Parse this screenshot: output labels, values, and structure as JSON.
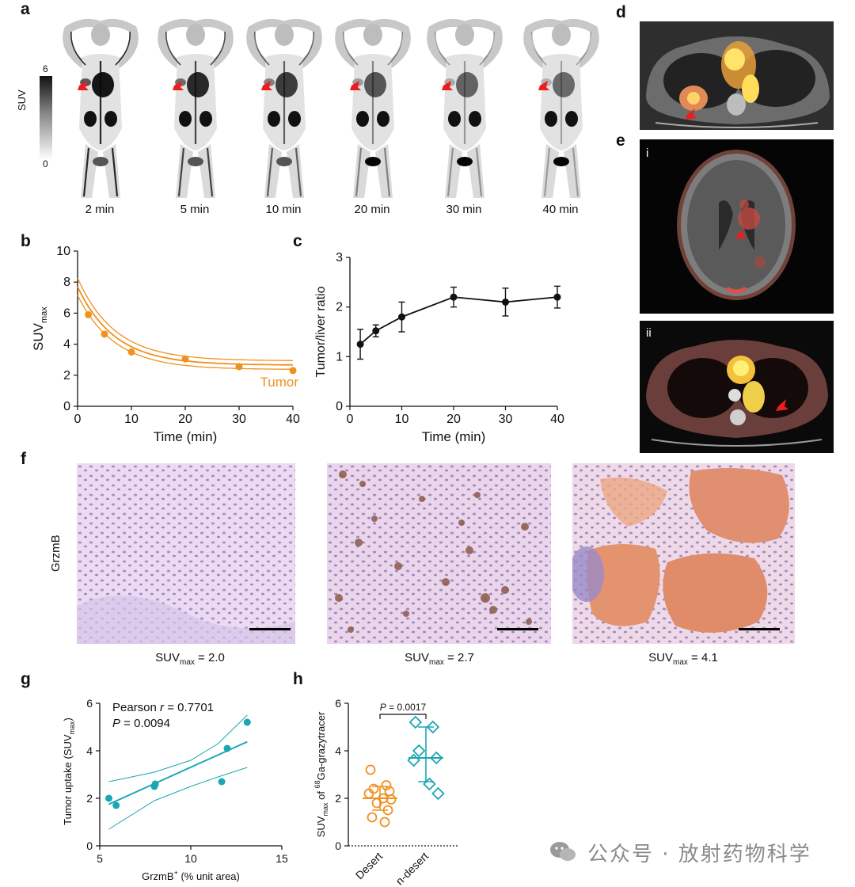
{
  "panels": {
    "a": "a",
    "b": "b",
    "c": "c",
    "d": "d",
    "e": "e",
    "f": "f",
    "g": "g",
    "h": "h"
  },
  "panel_a": {
    "colorbar": {
      "label": "SUV",
      "max": "6",
      "min": "0"
    },
    "timepoints": [
      "2 min",
      "5 min",
      "10 min",
      "20 min",
      "30 min",
      "40 min"
    ],
    "tracer_intensity": [
      1.0,
      0.85,
      0.7,
      0.5,
      0.4,
      0.35
    ]
  },
  "panel_e": {
    "sub_i": "i",
    "sub_ii": "ii"
  },
  "panel_f": {
    "row_label": "GrzmB",
    "captions": [
      {
        "pre": "SUV",
        "sub": "max",
        "post": " = 2.0"
      },
      {
        "pre": "SUV",
        "sub": "max",
        "post": " = 2.7"
      },
      {
        "pre": "SUV",
        "sub": "max",
        "post": " = 4.1"
      }
    ]
  },
  "chart_data": [
    {
      "panel": "b",
      "type": "line",
      "xlabel": "Time (min)",
      "ylabel": "SUV",
      "ylabel_sub": "max",
      "xlim": [
        0,
        40
      ],
      "ylim": [
        0,
        10
      ],
      "xticks": [
        0,
        10,
        20,
        30,
        40
      ],
      "yticks": [
        0,
        2,
        4,
        6,
        8,
        10
      ],
      "series": [
        {
          "name": "Tumor",
          "color": "#f0901e",
          "points": [
            {
              "x": 2,
              "y": 5.9
            },
            {
              "x": 5,
              "y": 4.65
            },
            {
              "x": 10,
              "y": 3.5
            },
            {
              "x": 20,
              "y": 3.05
            },
            {
              "x": 30,
              "y": 2.55
            },
            {
              "x": 40,
              "y": 2.3
            }
          ],
          "fit": {
            "y0": 7.7,
            "plateau": 2.65,
            "k": 0.145,
            "band": 0.28
          }
        }
      ]
    },
    {
      "panel": "c",
      "type": "line",
      "xlabel": "Time (min)",
      "ylabel": "Tumor/liver ratio",
      "xlim": [
        0,
        40
      ],
      "ylim": [
        0,
        3
      ],
      "xticks": [
        0,
        10,
        20,
        30,
        40
      ],
      "yticks": [
        0,
        1,
        2,
        3
      ],
      "series": [
        {
          "color": "#111111",
          "points": [
            {
              "x": 2,
              "y": 1.25,
              "err": 0.3
            },
            {
              "x": 5,
              "y": 1.52,
              "err": 0.12
            },
            {
              "x": 10,
              "y": 1.8,
              "err": 0.3
            },
            {
              "x": 20,
              "y": 2.2,
              "err": 0.2
            },
            {
              "x": 30,
              "y": 2.1,
              "err": 0.28
            },
            {
              "x": 40,
              "y": 2.2,
              "err": 0.22
            }
          ]
        }
      ]
    },
    {
      "panel": "g",
      "type": "scatter",
      "xlabel": "GrzmB",
      "xlabel_sup": "+",
      "xlabel_post": " (% unit area)",
      "ylabel": "Tumor uptake (SUV",
      "ylabel_sub": "max",
      "ylabel_post": ")",
      "xlim": [
        5,
        15
      ],
      "ylim": [
        0,
        6
      ],
      "xticks": [
        5,
        10,
        15
      ],
      "yticks": [
        0,
        2,
        4,
        6
      ],
      "stats": {
        "r_pre": "Pearson ",
        "r_it": "r",
        "r_post": " = 0.7701",
        "p_it": "P",
        "p_post": " = 0.0094"
      },
      "points": [
        {
          "x": 5.5,
          "y": 2.0
        },
        {
          "x": 5.9,
          "y": 1.7
        },
        {
          "x": 8.0,
          "y": 2.5
        },
        {
          "x": 8.05,
          "y": 2.6
        },
        {
          "x": 11.7,
          "y": 2.7
        },
        {
          "x": 12.0,
          "y": 4.1
        },
        {
          "x": 13.1,
          "y": 5.2
        }
      ],
      "fit": {
        "x0": 5.5,
        "y0": 1.75,
        "x1": 13.1,
        "y1": 4.38
      },
      "ci": {
        "upper": [
          [
            5.5,
            2.7
          ],
          [
            8,
            3.1
          ],
          [
            10,
            3.6
          ],
          [
            11.5,
            4.3
          ],
          [
            13.1,
            5.5
          ]
        ],
        "lower": [
          [
            5.5,
            0.7
          ],
          [
            8,
            1.9
          ],
          [
            10,
            2.5
          ],
          [
            11.5,
            2.9
          ],
          [
            13.1,
            3.3
          ]
        ]
      },
      "color": "#1aa6b3"
    },
    {
      "panel": "h",
      "type": "scatter",
      "ylabel": "SUV",
      "ylabel_sub": "max",
      "ylabel_post": " of ",
      "ylabel_sup": "68",
      "ylabel_end": "Ga-grazytracer",
      "ylim": [
        0,
        6
      ],
      "yticks": [
        0,
        2,
        4,
        6
      ],
      "categories": [
        "Desert",
        "n-desert"
      ],
      "pvalue": {
        "it": "P",
        "post": " = 0.0017"
      },
      "groups": [
        {
          "name": "Desert",
          "color": "#f0901e",
          "marker": "circle",
          "mean": 2.0,
          "sd_low": 1.5,
          "sd_high": 2.5,
          "values": [
            3.2,
            2.55,
            2.4,
            2.3,
            2.2,
            2.0,
            1.95,
            1.8,
            1.5,
            1.2,
            1.0
          ]
        },
        {
          "name": "n-desert",
          "color": "#1aa6b3",
          "marker": "diamond",
          "mean": 3.7,
          "sd_low": 2.7,
          "sd_high": 5.0,
          "values": [
            5.2,
            5.0,
            4.0,
            3.7,
            3.6,
            2.6,
            2.2
          ]
        }
      ]
    }
  ],
  "watermark": "公众号 · 放射药物科学"
}
